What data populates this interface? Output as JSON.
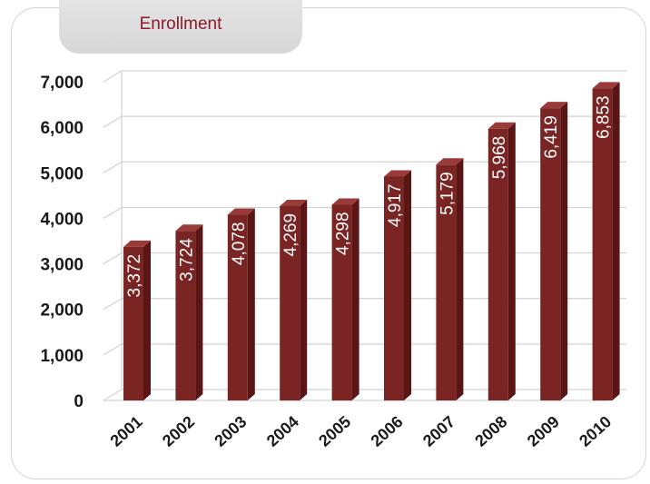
{
  "header": {
    "title": "Enrollment"
  },
  "colors": {
    "bar_front": "#7a2424",
    "bar_side": "#5a1515",
    "bar_top": "#9a3a3a",
    "grid": "#d2d2d2"
  },
  "chart_data": {
    "type": "bar",
    "title": "Enrollment",
    "categories": [
      "2001",
      "2002",
      "2003",
      "2004",
      "2005",
      "2006",
      "2007",
      "2008",
      "2009",
      "2010"
    ],
    "values": [
      3372,
      3724,
      4078,
      4269,
      4298,
      4917,
      5179,
      5968,
      6419,
      6853
    ],
    "data_labels": [
      "3,372",
      "3,724",
      "4,078",
      "4,269",
      "4,298",
      "4,917",
      "5,179",
      "5,968",
      "6,419",
      "6,853"
    ],
    "yticks": [
      0,
      1000,
      2000,
      3000,
      4000,
      5000,
      6000,
      7000
    ],
    "ytick_labels": [
      "0",
      "1,000",
      "2,000",
      "3,000",
      "4,000",
      "5,000",
      "6,000",
      "7,000"
    ],
    "ylim": [
      0,
      7000
    ],
    "grid": true,
    "legend": "none"
  }
}
